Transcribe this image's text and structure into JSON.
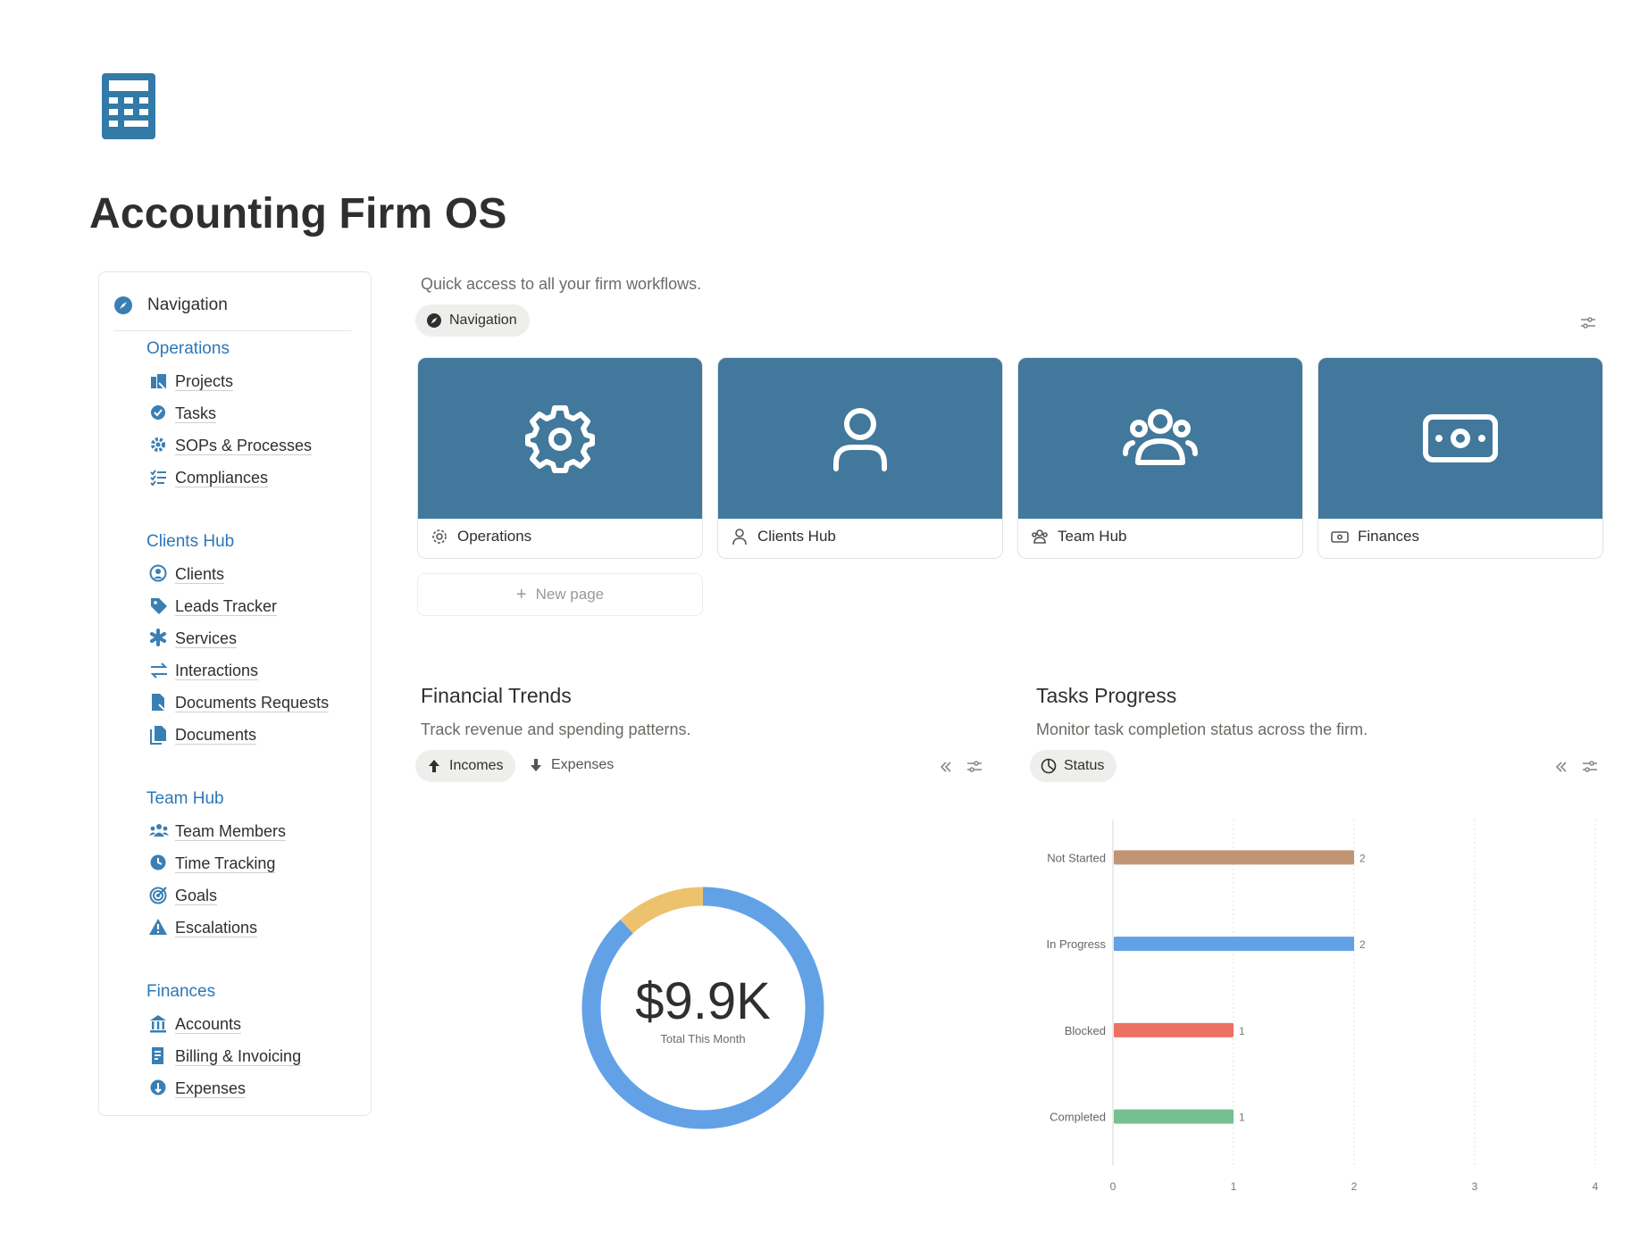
{
  "page": {
    "title": "Accounting Firm OS",
    "icon": "calculator-icon",
    "accent_color": "#41789b"
  },
  "sidebar": {
    "header": {
      "label": "Navigation",
      "icon": "compass-icon"
    },
    "sections": [
      {
        "title": "Operations",
        "items": [
          {
            "label": "Projects",
            "icon": "projects-icon"
          },
          {
            "label": "Tasks",
            "icon": "tasks-icon"
          },
          {
            "label": "SOPs & Processes",
            "icon": "gear-icon"
          },
          {
            "label": "Compliances",
            "icon": "checklist-icon"
          }
        ]
      },
      {
        "title": "Clients Hub",
        "items": [
          {
            "label": "Clients",
            "icon": "user-circle-icon"
          },
          {
            "label": "Leads Tracker",
            "icon": "tag-icon"
          },
          {
            "label": "Services",
            "icon": "asterisk-icon"
          },
          {
            "label": "Interactions",
            "icon": "arrows-icon"
          },
          {
            "label": "Documents Requests",
            "icon": "document-request-icon"
          },
          {
            "label": "Documents",
            "icon": "documents-icon"
          }
        ]
      },
      {
        "title": "Team Hub",
        "items": [
          {
            "label": "Team Members",
            "icon": "team-icon"
          },
          {
            "label": "Time Tracking",
            "icon": "clock-icon"
          },
          {
            "label": "Goals",
            "icon": "target-icon"
          },
          {
            "label": "Escalations",
            "icon": "warning-icon"
          }
        ]
      },
      {
        "title": "Finances",
        "items": [
          {
            "label": "Accounts",
            "icon": "bank-icon"
          },
          {
            "label": "Billing & Invoicing",
            "icon": "invoice-icon"
          },
          {
            "label": "Expenses",
            "icon": "expense-icon"
          }
        ]
      }
    ]
  },
  "quick_access": {
    "description": "Quick access to all your firm workflows.",
    "view_tab": "Navigation",
    "cards": [
      {
        "label": "Operations",
        "icon": "gear-icon"
      },
      {
        "label": "Clients Hub",
        "icon": "user-icon"
      },
      {
        "label": "Team Hub",
        "icon": "group-icon"
      },
      {
        "label": "Finances",
        "icon": "money-icon"
      }
    ],
    "new_page": "New page"
  },
  "financial_trends": {
    "title": "Financial Trends",
    "description": "Track revenue and spending patterns.",
    "tabs": [
      {
        "label": "Incomes",
        "active": true
      },
      {
        "label": "Expenses",
        "active": false
      }
    ],
    "total_value": "$9.9K",
    "total_caption": "Total This Month"
  },
  "tasks_progress": {
    "title": "Tasks Progress",
    "description": "Monitor task completion status across the firm.",
    "tab": "Status"
  },
  "chart_data": [
    {
      "type": "pie",
      "variant": "donut",
      "center_value": "$9.9K",
      "center_label": "Total This Month",
      "slices": [
        {
          "fraction": 0.88,
          "color": "#62a1e6"
        },
        {
          "fraction": 0.12,
          "color": "#edc26e"
        }
      ]
    },
    {
      "type": "bar",
      "orientation": "horizontal",
      "categories": [
        "Not Started",
        "In Progress",
        "Blocked",
        "Completed"
      ],
      "values": [
        2,
        2,
        1,
        1
      ],
      "colors": [
        "#c19476",
        "#62a1e6",
        "#ec7163",
        "#76bf91"
      ],
      "xlim": [
        0,
        4
      ],
      "xticks": [
        0,
        1,
        2,
        3,
        4
      ],
      "grid": true
    }
  ]
}
